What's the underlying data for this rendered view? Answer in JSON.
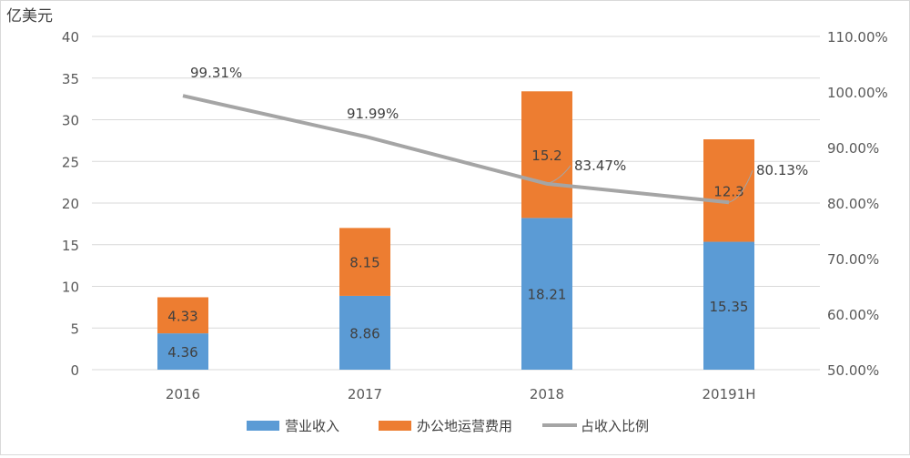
{
  "chart_data": {
    "type": "bar",
    "stacked": true,
    "unit_label": "亿美元",
    "categories": [
      "2016",
      "2017",
      "2018",
      "20191H"
    ],
    "series": [
      {
        "name": "营业收入",
        "type": "bar",
        "axis": "left",
        "color": "#5B9BD5",
        "values": [
          4.36,
          8.86,
          18.21,
          15.35
        ]
      },
      {
        "name": "办公地运营费用",
        "type": "bar",
        "axis": "left",
        "color": "#ED7D31",
        "values": [
          4.33,
          8.15,
          15.2,
          12.3
        ]
      },
      {
        "name": "占收入比例",
        "type": "line",
        "axis": "right",
        "color": "#A5A5A5",
        "values": [
          99.31,
          91.99,
          83.47,
          80.13
        ],
        "labels": [
          "99.31%",
          "91.99%",
          "83.47%",
          "80.13%"
        ]
      }
    ],
    "left_axis": {
      "min": 0,
      "max": 40,
      "ticks": [
        "0",
        "5",
        "10",
        "15",
        "20",
        "25",
        "30",
        "35",
        "40"
      ]
    },
    "right_axis": {
      "min": 50,
      "max": 110,
      "ticks": [
        "50.00%",
        "60.00%",
        "70.00%",
        "80.00%",
        "90.00%",
        "100.00%",
        "110.00%"
      ]
    },
    "gridlines": true,
    "legend": "bottom"
  }
}
